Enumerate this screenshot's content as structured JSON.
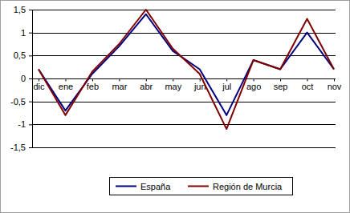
{
  "chart_data": {
    "type": "line",
    "categories": [
      "dic",
      "ene",
      "feb",
      "mar",
      "abr",
      "may",
      "jun",
      "jul",
      "ago",
      "sep",
      "oct",
      "nov"
    ],
    "series": [
      {
        "name": "España",
        "color": "#000080",
        "values": [
          0.2,
          -0.7,
          0.1,
          0.7,
          1.4,
          0.6,
          0.2,
          -0.8,
          0.4,
          0.2,
          1.0,
          0.2
        ]
      },
      {
        "name": "Región de Murcia",
        "color": "#800000",
        "values": [
          0.2,
          -0.8,
          0.15,
          0.75,
          1.5,
          0.65,
          0.1,
          -1.1,
          0.4,
          0.2,
          1.3,
          0.2
        ]
      }
    ],
    "ylim": [
      -1.5,
      1.5
    ],
    "yticks": [
      {
        "value": 1.5,
        "label": "1,5"
      },
      1,
      {
        "value": 0.5,
        "label": "0,5"
      },
      0,
      {
        "value": -0.5,
        "label": "-0,5"
      },
      -1,
      {
        "value": -1.5,
        "label": "-1,5"
      }
    ],
    "grid": true,
    "legend": "bottom"
  }
}
